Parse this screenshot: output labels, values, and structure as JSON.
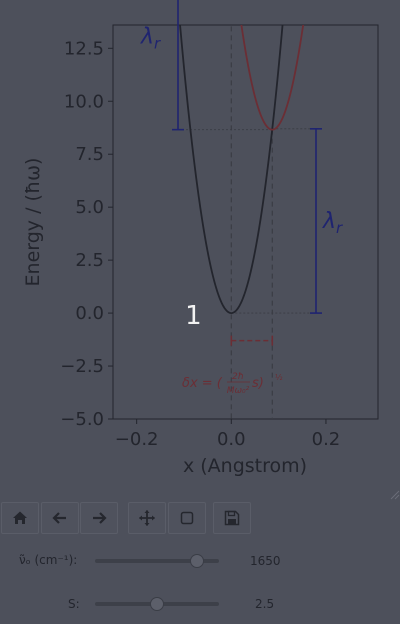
{
  "chart_data": {
    "type": "line",
    "xlabel": "x (Angstrom)",
    "ylabel": "Energy / (ħω)",
    "xlim": [
      -0.25,
      0.31
    ],
    "ylim": [
      -5.0,
      13.6
    ],
    "xticks": [
      "−0.2",
      "0.0",
      "0.2"
    ],
    "xtick_values": [
      -0.2,
      0.0,
      0.2
    ],
    "yticks": [
      "−5.0",
      "−2.5",
      "0.0",
      "2.5",
      "5.0",
      "7.5",
      "10.0",
      "12.5"
    ],
    "ytick_values": [
      -5.0,
      -2.5,
      0.0,
      2.5,
      5.0,
      7.5,
      10.0,
      12.5
    ],
    "series": [
      {
        "role": "ground",
        "center": 0.0,
        "min": 0.0,
        "k": 1160,
        "color": "#23252d"
      },
      {
        "role": "excited",
        "center": 0.0866,
        "min": 8.66,
        "k": 1160,
        "color": "#6b2e35"
      }
    ],
    "annotations": {
      "state_marker": "1",
      "lambda_top": "λ",
      "lambda_bottom": "λ",
      "lambda_sub": "r",
      "displacement_formula": "δx = (2ħ/(Mω₀² s))^½",
      "formula_main": "δx = (",
      "formula_num": "2ħ",
      "formula_den": "Mω₀²",
      "formula_tail": "s)",
      "formula_exp": "½"
    },
    "colors": {
      "ground": "#23252d",
      "excited": "#6b2e35",
      "lambda": "#1f2470",
      "guide": "#3a3c44",
      "background": "#4d505b"
    }
  },
  "toolbar": {
    "buttons": [
      "home-icon",
      "back-arrow-icon",
      "forward-arrow-icon",
      "pan-icon",
      "zoom-rect-icon",
      "save-icon"
    ]
  },
  "controls": {
    "freq_label": "ν̃ₒ (cm⁻¹):",
    "freq_value": "1650",
    "freq_min": 0,
    "freq_max": 2000,
    "s_label": "S:",
    "s_value": "2.5",
    "s_min": 0,
    "s_max": 5
  }
}
